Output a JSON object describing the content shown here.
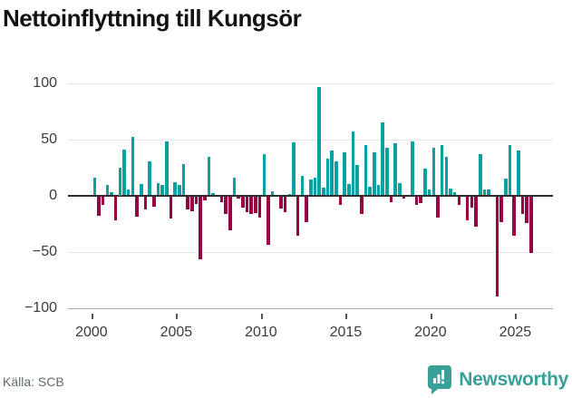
{
  "title": "Nettoinflyttning till Kungsör",
  "source": "Källa: SCB",
  "logo": {
    "text": "Newsworthy",
    "icon": "bar-chart-badge-icon"
  },
  "chart_data": {
    "type": "bar",
    "title": "Nettoinflyttning till Kungsör",
    "frequency": "quarterly",
    "years": [
      "2000",
      "2001",
      "2002",
      "2003",
      "2004",
      "2005",
      "2006",
      "2007",
      "2008",
      "2009",
      "2010",
      "2011",
      "2012",
      "2013",
      "2014",
      "2015",
      "2016",
      "2017",
      "2018",
      "2019",
      "2020",
      "2021",
      "2022",
      "2023",
      "2024",
      "2025"
    ],
    "quarter_values_by_year": [
      [
        16,
        -17,
        -8,
        9
      ],
      [
        3,
        -21,
        25,
        41
      ],
      [
        5,
        52,
        -18,
        10
      ],
      [
        -12,
        30,
        -9,
        11
      ],
      [
        9,
        48,
        -20,
        12
      ],
      [
        9,
        28,
        -12,
        -13
      ],
      [
        -7,
        -56,
        -4,
        34
      ],
      [
        2,
        0,
        -5,
        -16
      ],
      [
        -30,
        16,
        -2,
        -10
      ],
      [
        -14,
        -16,
        -15,
        -19
      ],
      [
        37,
        -43,
        4,
        0
      ],
      [
        -11,
        -14,
        1,
        47
      ],
      [
        -35,
        17,
        -23,
        14
      ],
      [
        16,
        96,
        7,
        33
      ],
      [
        40,
        30,
        -8,
        38
      ],
      [
        10,
        57,
        27,
        -16
      ],
      [
        45,
        8,
        38,
        9
      ],
      [
        65,
        42,
        -5,
        46
      ],
      [
        11,
        -2,
        0,
        48
      ],
      [
        -8,
        -6,
        24,
        5
      ],
      [
        42,
        -19,
        45,
        34
      ],
      [
        6,
        3,
        -8,
        0
      ],
      [
        -21,
        -10,
        -27,
        37
      ],
      [
        5,
        5,
        0,
        -89
      ],
      [
        -23,
        15,
        45,
        -35
      ],
      [
        40,
        -16,
        -24,
        -50
      ]
    ],
    "y_ticks": [
      "100",
      "50",
      "0",
      "−50",
      "−100"
    ],
    "y_tick_values": [
      100,
      50,
      0,
      -50,
      -100
    ],
    "x_tick_years": [
      "2000",
      "2005",
      "2010",
      "2015",
      "2020",
      "2025"
    ],
    "ylim": [
      -100,
      100
    ],
    "grid": true,
    "legend": false,
    "positive_color": "#0aa2a0",
    "negative_color": "#980043"
  }
}
